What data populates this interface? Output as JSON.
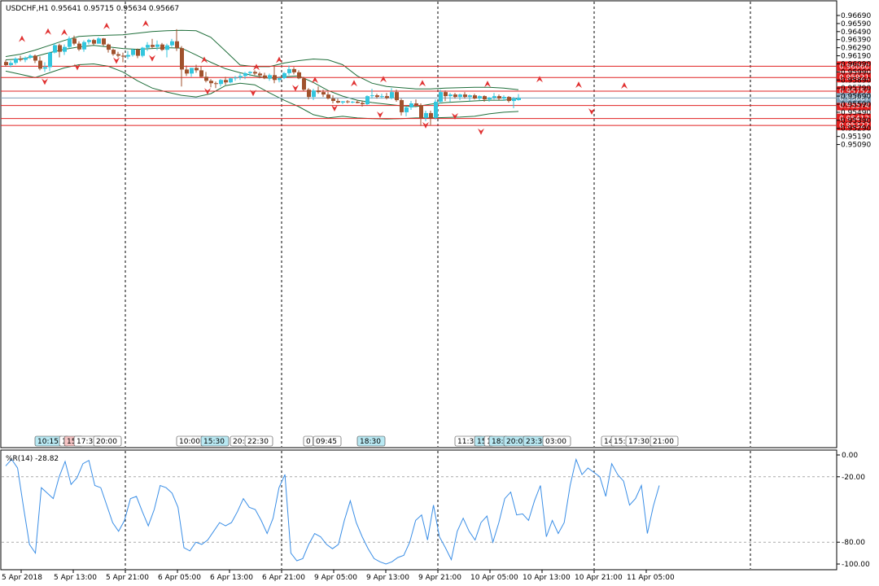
{
  "header": {
    "symbol_line": "USDCHF,H1  0.95641 0.95715 0.95634 0.95667"
  },
  "indicator": {
    "label": "%R(14) -28.82",
    "axis_labels": [
      "0.00",
      "-20.00",
      "-80.00",
      "-100.00"
    ]
  },
  "colors": {
    "bull": "#33c6de",
    "bear": "#a0522d",
    "band": "#1f6e3a",
    "level_line": "#e02020",
    "level_tag": "#e02020",
    "current_tag": "#7f9fb8",
    "wpr_line": "#3a8ee6",
    "fractal": "#e03030",
    "grid": "#000000"
  },
  "chart_data": {
    "type": "candlestick",
    "price_ticks": [
      "0.96690",
      "0.96590",
      "0.96490",
      "0.96390",
      "0.96290",
      "0.96190",
      "0.96090",
      "0.95990",
      "0.95890",
      "0.95790",
      "0.95690",
      "0.95590",
      "0.95490",
      "0.95390",
      "0.95290",
      "0.95190",
      "0.95090"
    ],
    "price_range": [
      0.9509,
      0.9669
    ],
    "levels": [
      {
        "label": "0.96060",
        "value": 0.9606
      },
      {
        "label": "0.95921",
        "value": 0.95921
      },
      {
        "label": "0.95752",
        "value": 0.95752
      },
      {
        "label": "0.95574",
        "value": 0.95574
      },
      {
        "label": "0.95412",
        "value": 0.95412
      },
      {
        "label": "0.95327",
        "value": 0.95327
      }
    ],
    "current_price": {
      "label": "0.95667",
      "value": 0.95667
    },
    "x_labels": [
      "5 Apr 2018",
      "5 Apr 13:00",
      "5 Apr 21:00",
      "6 Apr 05:00",
      "6 Apr 13:00",
      "6 Apr 21:00",
      "9 Apr 05:00",
      "9 Apr 13:00",
      "9 Apr 21:00",
      "10 Apr 05:00",
      "10 Apr 13:00",
      "10 Apr 21:00",
      "11 Apr 05:00"
    ],
    "session_tags": [
      {
        "text": "10:15",
        "color": "#b8e8f2",
        "bar": 6
      },
      {
        "text": "1",
        "color": "#ffffff",
        "bar": 11
      },
      {
        "text": "15:",
        "color": "#f6c4c4",
        "bar": 12
      },
      {
        "text": "17:30",
        "color": "#ffffff",
        "bar": 14
      },
      {
        "text": "20:00",
        "color": "#ffffff",
        "bar": 18
      },
      {
        "text": "10:00",
        "color": "#ffffff",
        "bar": 35
      },
      {
        "text": "15:30",
        "color": "#b8e8f2",
        "bar": 40
      },
      {
        "text": "20:",
        "color": "#ffffff",
        "bar": 46
      },
      {
        "text": "22:30",
        "color": "#ffffff",
        "bar": 49
      },
      {
        "text": "0",
        "color": "#ffffff",
        "bar": 61
      },
      {
        "text": "09:45",
        "color": "#ffffff",
        "bar": 63
      },
      {
        "text": "18:30",
        "color": "#b8e8f2",
        "bar": 72
      },
      {
        "text": "11:30",
        "color": "#ffffff",
        "bar": 92
      },
      {
        "text": "15:",
        "color": "#b8e8f2",
        "bar": 96
      },
      {
        "text": "1",
        "color": "#ffffff",
        "bar": 98
      },
      {
        "text": "18:",
        "color": "#b8e8f2",
        "bar": 99
      },
      {
        "text": "20:00",
        "color": "#b8e8f2",
        "bar": 102
      },
      {
        "text": "23:30",
        "color": "#b8e8f2",
        "bar": 106
      },
      {
        "text": "03:00",
        "color": "#ffffff",
        "bar": 110
      },
      {
        "text": "14",
        "color": "#ffffff",
        "bar": 122
      },
      {
        "text": "15:",
        "color": "#ffffff",
        "bar": 124
      },
      {
        "text": "17:30",
        "color": "#ffffff",
        "bar": 127
      },
      {
        "text": "21:00",
        "color": "#ffffff",
        "bar": 132
      }
    ],
    "candles_start_x": 7,
    "candles": [
      [
        0.96113,
        0.96138,
        0.96054,
        0.96075
      ],
      [
        0.96075,
        0.96128,
        0.96048,
        0.96102
      ],
      [
        0.96102,
        0.9617,
        0.9608,
        0.96155
      ],
      [
        0.96155,
        0.9619,
        0.9612,
        0.9614
      ],
      [
        0.9614,
        0.9618,
        0.9611,
        0.96165
      ],
      [
        0.96165,
        0.9621,
        0.9615,
        0.96192
      ],
      [
        0.96192,
        0.96206,
        0.961,
        0.9613
      ],
      [
        0.9613,
        0.9618,
        0.9601,
        0.9603
      ],
      [
        0.9603,
        0.9611,
        0.9599,
        0.9605
      ],
      [
        0.9605,
        0.9624,
        0.96,
        0.9623
      ],
      [
        0.9623,
        0.9635,
        0.9622,
        0.96322
      ],
      [
        0.96322,
        0.9634,
        0.9617,
        0.9624
      ],
      [
        0.9624,
        0.9633,
        0.962,
        0.963
      ],
      [
        0.963,
        0.9643,
        0.9628,
        0.96405
      ],
      [
        0.96405,
        0.9644,
        0.9632,
        0.96341
      ],
      [
        0.96341,
        0.9637,
        0.9625,
        0.96269
      ],
      [
        0.96269,
        0.9638,
        0.9624,
        0.9636
      ],
      [
        0.9636,
        0.964,
        0.9633,
        0.96385
      ],
      [
        0.96385,
        0.964,
        0.9632,
        0.9634
      ],
      [
        0.9634,
        0.9642,
        0.9634,
        0.96405
      ],
      [
        0.96405,
        0.9641,
        0.9631,
        0.9633
      ],
      [
        0.9633,
        0.9634,
        0.9623,
        0.96265
      ],
      [
        0.96265,
        0.9628,
        0.9619,
        0.9621
      ],
      [
        0.9621,
        0.9624,
        0.9617,
        0.96191
      ],
      [
        0.96191,
        0.9623,
        0.9611,
        0.9618
      ],
      [
        0.9618,
        0.9625,
        0.9615,
        0.962
      ],
      [
        0.962,
        0.9628,
        0.9618,
        0.96266
      ],
      [
        0.96266,
        0.9628,
        0.9616,
        0.9619
      ],
      [
        0.9619,
        0.963,
        0.9617,
        0.9629
      ],
      [
        0.9629,
        0.9636,
        0.9625,
        0.96325
      ],
      [
        0.96325,
        0.964,
        0.9628,
        0.963
      ],
      [
        0.963,
        0.9638,
        0.9626,
        0.9633
      ],
      [
        0.9633,
        0.9635,
        0.9625,
        0.96264
      ],
      [
        0.96264,
        0.9634,
        0.9617,
        0.9632
      ],
      [
        0.9632,
        0.964,
        0.963,
        0.9637
      ],
      [
        0.9637,
        0.9652,
        0.9625,
        0.96285
      ],
      [
        0.96285,
        0.9631,
        0.9581,
        0.9602
      ],
      [
        0.9602,
        0.9607,
        0.9594,
        0.9597
      ],
      [
        0.9597,
        0.9604,
        0.9593,
        0.9604
      ],
      [
        0.9604,
        0.9608,
        0.9598,
        0.9601
      ],
      [
        0.9601,
        0.9606,
        0.9592,
        0.9593
      ],
      [
        0.9593,
        0.9599,
        0.9586,
        0.9588
      ],
      [
        0.9588,
        0.959,
        0.958,
        0.9585
      ],
      [
        0.9585,
        0.9587,
        0.9579,
        0.9584
      ],
      [
        0.9584,
        0.959,
        0.9581,
        0.9589
      ],
      [
        0.9589,
        0.9593,
        0.9583,
        0.9586
      ],
      [
        0.9586,
        0.9592,
        0.9585,
        0.9591
      ],
      [
        0.9591,
        0.9594,
        0.9588,
        0.9592
      ],
      [
        0.9592,
        0.9597,
        0.9589,
        0.9594
      ],
      [
        0.9594,
        0.9599,
        0.959,
        0.95975
      ],
      [
        0.95975,
        0.96,
        0.9594,
        0.9599
      ],
      [
        0.9599,
        0.9601,
        0.9595,
        0.9597
      ],
      [
        0.9597,
        0.9599,
        0.9591,
        0.95946
      ],
      [
        0.95946,
        0.9598,
        0.959,
        0.9591
      ],
      [
        0.9591,
        0.9597,
        0.9588,
        0.9595
      ],
      [
        0.9595,
        0.9606,
        0.9585,
        0.9589
      ],
      [
        0.9589,
        0.9592,
        0.9586,
        0.95914
      ],
      [
        0.95914,
        0.9599,
        0.959,
        0.95975
      ],
      [
        0.95975,
        0.9607,
        0.9595,
        0.96025
      ],
      [
        0.96025,
        0.9605,
        0.9596,
        0.95985
      ],
      [
        0.95985,
        0.9601,
        0.959,
        0.9591
      ],
      [
        0.9591,
        0.9593,
        0.9575,
        0.9577
      ],
      [
        0.9577,
        0.9579,
        0.9565,
        0.9568
      ],
      [
        0.9568,
        0.9578,
        0.9564,
        0.9576
      ],
      [
        0.9576,
        0.9581,
        0.9572,
        0.9574
      ],
      [
        0.9574,
        0.9577,
        0.9568,
        0.9571
      ],
      [
        0.9571,
        0.9574,
        0.9565,
        0.9566
      ],
      [
        0.9566,
        0.957,
        0.956,
        0.9563
      ],
      [
        0.9563,
        0.9566,
        0.956,
        0.9561
      ],
      [
        0.9561,
        0.9563,
        0.9559,
        0.95625
      ],
      [
        0.95625,
        0.9564,
        0.956,
        0.95615
      ],
      [
        0.95615,
        0.9563,
        0.956,
        0.9562
      ],
      [
        0.9562,
        0.9564,
        0.956,
        0.95605
      ],
      [
        0.95605,
        0.9563,
        0.9556,
        0.9559
      ],
      [
        0.9559,
        0.957,
        0.9558,
        0.9569
      ],
      [
        0.9569,
        0.9578,
        0.9566,
        0.957
      ],
      [
        0.957,
        0.9572,
        0.9566,
        0.9568
      ],
      [
        0.9568,
        0.9572,
        0.9566,
        0.9569
      ],
      [
        0.9569,
        0.9573,
        0.9565,
        0.95666
      ],
      [
        0.95666,
        0.9579,
        0.9565,
        0.9574
      ],
      [
        0.9574,
        0.9577,
        0.9562,
        0.9564
      ],
      [
        0.9564,
        0.9566,
        0.9545,
        0.9549
      ],
      [
        0.9549,
        0.9556,
        0.9544,
        0.9555
      ],
      [
        0.9555,
        0.9563,
        0.9552,
        0.956
      ],
      [
        0.956,
        0.9565,
        0.9556,
        0.9558
      ],
      [
        0.9558,
        0.956,
        0.9532,
        0.9542
      ],
      [
        0.9542,
        0.9551,
        0.9538,
        0.9548
      ],
      [
        0.9548,
        0.9551,
        0.9533,
        0.9542
      ],
      [
        0.9542,
        0.9565,
        0.954,
        0.9562
      ],
      [
        0.9562,
        0.9577,
        0.956,
        0.9574
      ],
      [
        0.9574,
        0.9576,
        0.9563,
        0.9569
      ],
      [
        0.9569,
        0.9573,
        0.9562,
        0.9571
      ],
      [
        0.9571,
        0.9573,
        0.9566,
        0.9568
      ],
      [
        0.9568,
        0.9572,
        0.9564,
        0.9571
      ],
      [
        0.9571,
        0.9574,
        0.9566,
        0.9568
      ],
      [
        0.9568,
        0.9571,
        0.9563,
        0.957
      ],
      [
        0.957,
        0.9572,
        0.9565,
        0.9566
      ],
      [
        0.9566,
        0.957,
        0.9564,
        0.9569
      ],
      [
        0.9569,
        0.957,
        0.9562,
        0.9565
      ],
      [
        0.9565,
        0.9568,
        0.9562,
        0.9567
      ],
      [
        0.9567,
        0.9573,
        0.9565,
        0.9569
      ],
      [
        0.9569,
        0.9571,
        0.9564,
        0.9566
      ],
      [
        0.9566,
        0.957,
        0.9563,
        0.9568
      ],
      [
        0.9568,
        0.9569,
        0.9561,
        0.9563
      ],
      [
        0.9563,
        0.9568,
        0.9554,
        0.9566
      ],
      [
        0.95641,
        0.95715,
        0.95634,
        0.95667
      ]
    ],
    "bands": {
      "upper": [
        0.9618,
        0.9621,
        0.9626,
        0.9632,
        0.9638,
        0.9643,
        0.9644,
        0.96445,
        0.9645,
        0.9647,
        0.9649,
        0.965,
        0.96505,
        0.965,
        0.9642,
        0.9625,
        0.96075,
        0.96055,
        0.96055,
        0.961,
        0.9613,
        0.9615,
        0.9614,
        0.9608,
        0.9594,
        0.9585,
        0.9581,
        0.95795,
        0.9578,
        0.9578,
        0.9579,
        0.95795,
        0.958,
        0.958,
        0.9579,
        0.9577
      ],
      "middle": [
        0.9614,
        0.9615,
        0.9618,
        0.9623,
        0.9627,
        0.963,
        0.9632,
        0.963,
        0.9628,
        0.9627,
        0.9628,
        0.9629,
        0.96285,
        0.962,
        0.9611,
        0.9603,
        0.9598,
        0.9594,
        0.9591,
        0.9593,
        0.9594,
        0.9586,
        0.9576,
        0.9569,
        0.9564,
        0.9561,
        0.9559,
        0.9557,
        0.9556,
        0.9559,
        0.9561,
        0.9562,
        0.9563,
        0.9564,
        0.9564,
        0.9566
      ],
      "lower": [
        0.96,
        0.9596,
        0.9592,
        0.9598,
        0.9604,
        0.9608,
        0.9609,
        0.9606,
        0.9599,
        0.9588,
        0.9579,
        0.9574,
        0.957,
        0.9568,
        0.9572,
        0.9582,
        0.9585,
        0.9583,
        0.9573,
        0.9564,
        0.9556,
        0.9546,
        0.9542,
        0.9544,
        0.9542,
        0.9541,
        0.95405,
        0.9541,
        0.9542,
        0.9542,
        0.95425,
        0.9543,
        0.9544,
        0.9547,
        0.9549,
        0.955
      ]
    },
    "fractals_up": [
      [
        5,
        0.9634
      ],
      [
        13,
        0.9643
      ],
      [
        18,
        0.9642
      ],
      [
        31,
        0.965
      ],
      [
        43,
        0.9653
      ],
      [
        61,
        0.9608
      ],
      [
        77,
        0.9599
      ],
      [
        84,
        0.9608
      ],
      [
        95,
        0.9583
      ],
      [
        107,
        0.9579
      ],
      [
        116,
        0.9584
      ],
      [
        128,
        0.9579
      ],
      [
        148,
        0.9578
      ],
      [
        164,
        0.9584
      ],
      [
        176,
        0.9577
      ],
      [
        190,
        0.9576
      ]
    ],
    "fractals_down": [
      [
        12,
        0.9593
      ],
      [
        22,
        0.9611
      ],
      [
        34,
        0.9619
      ],
      [
        45,
        0.9622
      ],
      [
        62,
        0.9581
      ],
      [
        76,
        0.9579
      ],
      [
        89,
        0.9585
      ],
      [
        101,
        0.956
      ],
      [
        115,
        0.9552
      ],
      [
        129,
        0.9539
      ],
      [
        138,
        0.955
      ],
      [
        146,
        0.9531
      ],
      [
        180,
        0.9556
      ]
    ],
    "wpr": [
      -10,
      -4,
      -12,
      -48,
      -82,
      -90,
      -30,
      -35,
      -40,
      -20,
      -6,
      -27,
      -21,
      -8,
      -5,
      -28,
      -30,
      -46,
      -62,
      -70,
      -60,
      -40,
      -38,
      -52,
      -65,
      -50,
      -28,
      -30,
      -35,
      -48,
      -85,
      -88,
      -80,
      -82,
      -78,
      -70,
      -62,
      -65,
      -62,
      -52,
      -40,
      -48,
      -50,
      -60,
      -72,
      -58,
      -30,
      -18,
      -90,
      -97,
      -95,
      -82,
      -72,
      -75,
      -82,
      -86,
      -82,
      -60,
      -42,
      -62,
      -75,
      -86,
      -95,
      -98,
      -100,
      -98,
      -94,
      -92,
      -80,
      -60,
      -55,
      -78,
      -46,
      -75,
      -85,
      -96,
      -70,
      -58,
      -70,
      -78,
      -62,
      -56,
      -80,
      -62,
      -40,
      -34,
      -55,
      -54,
      -60,
      -42,
      -28,
      -75,
      -60,
      -72,
      -62,
      -28,
      -4,
      -18,
      -12,
      -16,
      -20,
      -38,
      -8,
      -18,
      -24,
      -46,
      -40,
      -28,
      -72,
      -47,
      -28
    ]
  }
}
